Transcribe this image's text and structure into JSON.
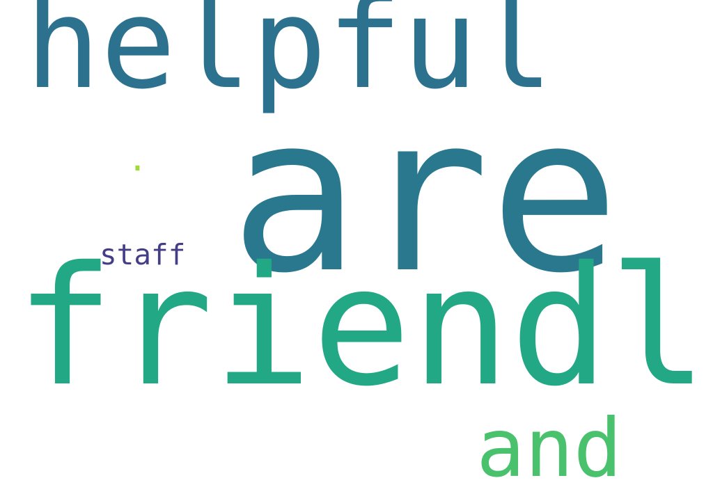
{
  "words": {
    "are": {
      "text": "are",
      "color": "#2a788e",
      "weight": 1.0
    },
    "helpful": {
      "text": "helpful",
      "color": "#2c728e",
      "weight": 0.58
    },
    "friendly": {
      "text": "friendly",
      "color": "#22a884",
      "weight": 0.76
    },
    "and": {
      "text": "and",
      "color": "#4ac16d",
      "weight": 0.37
    },
    "staff": {
      "text": "staff",
      "color": "#433e85",
      "weight": 0.13
    },
    "dot": {
      "text": ".",
      "color": "#a0da39",
      "weight": 0.15
    }
  },
  "background_color": "#ffffff"
}
